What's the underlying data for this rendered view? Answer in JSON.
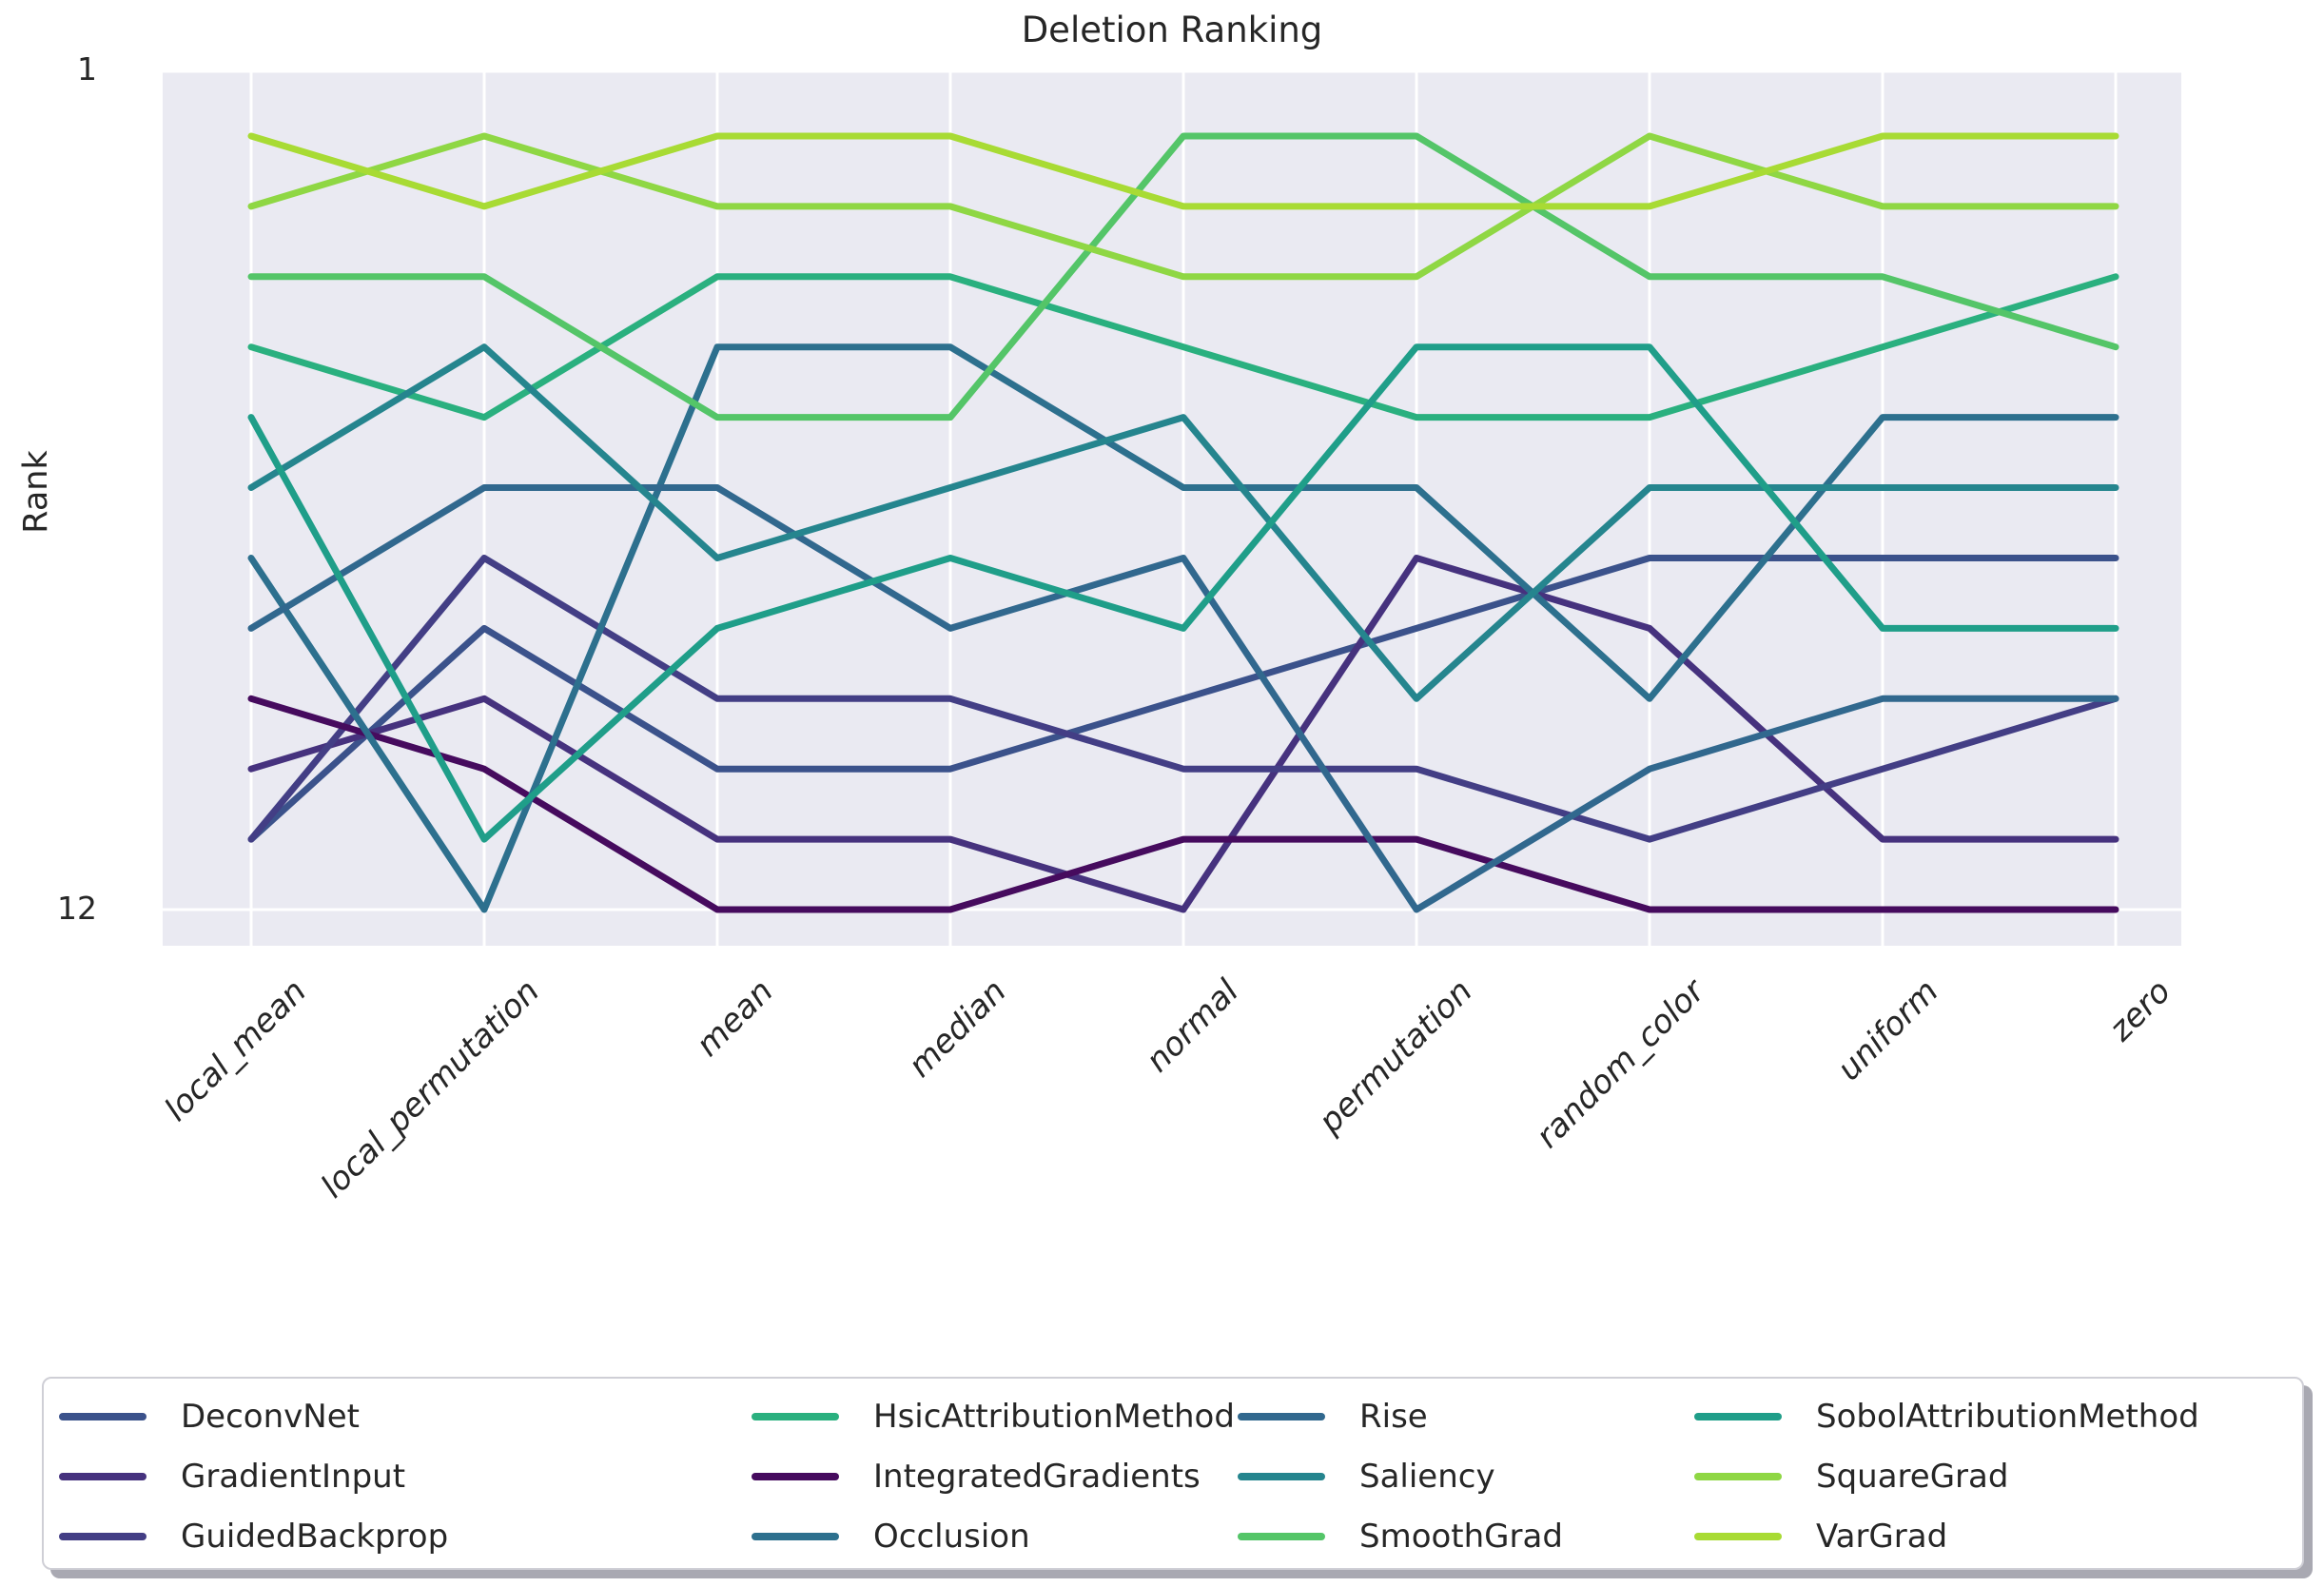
{
  "title": "Deletion Ranking",
  "ylabel": "Rank",
  "yticks": [
    {
      "label": "1",
      "rank": 1
    },
    {
      "label": "12",
      "rank": 12
    }
  ],
  "chart_data": {
    "type": "line",
    "subtype": "rank-bump-chart",
    "title": "Deletion Ranking",
    "xlabel": "",
    "ylabel": "Rank",
    "ylim": [
      1,
      12
    ],
    "y_axis_inverted": true,
    "grid": true,
    "legend_position": "bottom",
    "categories": [
      "local_mean",
      "local_permutation",
      "mean",
      "median",
      "normal",
      "permutation",
      "random_color",
      "uniform",
      "zero"
    ],
    "series": [
      {
        "name": "DeconvNet",
        "color": "#3b528b",
        "ranks": [
          11,
          8,
          10,
          10,
          9,
          8,
          7,
          7,
          7
        ]
      },
      {
        "name": "GradientInput",
        "color": "#46327e",
        "ranks": [
          10,
          9,
          11,
          11,
          12,
          7,
          8,
          11,
          11
        ]
      },
      {
        "name": "GuidedBackprop",
        "color": "#433e85",
        "ranks": [
          11,
          7,
          9,
          9,
          10,
          10,
          11,
          10,
          9
        ]
      },
      {
        "name": "HsicAttributionMethod",
        "color": "#2ab07f",
        "ranks": [
          4,
          5,
          3,
          3,
          4,
          5,
          5,
          4,
          3
        ]
      },
      {
        "name": "IntegratedGradients",
        "color": "#460b5e",
        "ranks": [
          9,
          10,
          12,
          12,
          11,
          11,
          12,
          12,
          12
        ]
      },
      {
        "name": "Occlusion",
        "color": "#2d708e",
        "ranks": [
          7,
          12,
          4,
          4,
          6,
          6,
          9,
          5,
          5
        ]
      },
      {
        "name": "Rise",
        "color": "#31688e",
        "ranks": [
          8,
          6,
          6,
          8,
          7,
          12,
          10,
          9,
          9
        ]
      },
      {
        "name": "Saliency",
        "color": "#25858e",
        "ranks": [
          6,
          4,
          7,
          6,
          5,
          9,
          6,
          6,
          6
        ]
      },
      {
        "name": "SmoothGrad",
        "color": "#54c568",
        "ranks": [
          3,
          3,
          5,
          5,
          1,
          1,
          3,
          3,
          4
        ]
      },
      {
        "name": "SobolAttributionMethod",
        "color": "#1f9e89",
        "ranks": [
          5,
          11,
          8,
          7,
          8,
          4,
          4,
          8,
          8
        ]
      },
      {
        "name": "SquareGrad",
        "color": "#8fd744",
        "ranks": [
          2,
          1,
          2,
          2,
          3,
          3,
          1,
          2,
          2
        ]
      },
      {
        "name": "VarGrad",
        "color": "#a8db34",
        "ranks": [
          1,
          2,
          1,
          1,
          2,
          2,
          2,
          1,
          1
        ]
      }
    ]
  }
}
